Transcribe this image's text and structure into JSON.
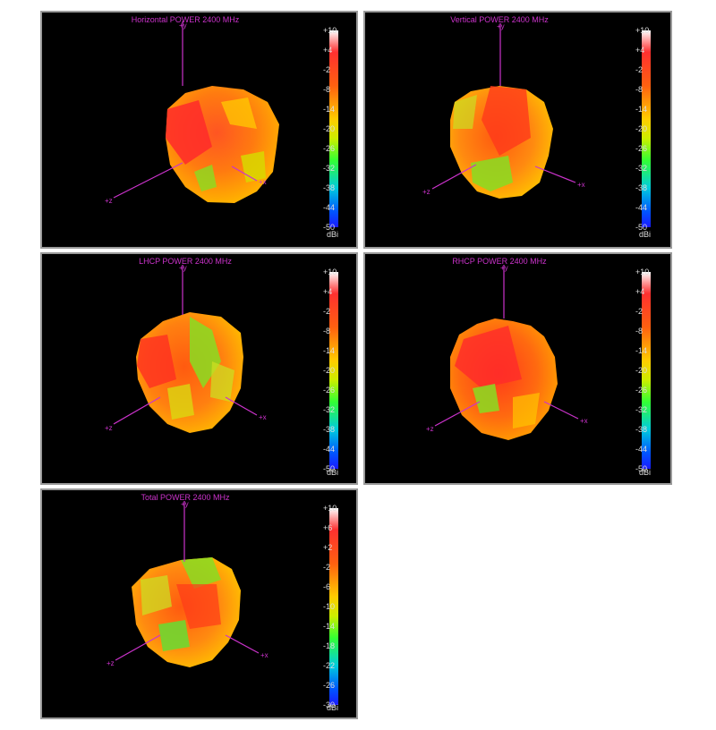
{
  "chart_data": [
    {
      "type": "other",
      "title": "Horizontal POWER 2400  MHz",
      "axes": [
        "+y",
        "+z",
        "+x"
      ],
      "colorbar": {
        "unit": "dBi",
        "ticks": [
          "+10",
          "+4",
          "-2",
          "-8",
          "-14",
          "-20",
          "-26",
          "-32",
          "-38",
          "-44",
          "-50"
        ],
        "range": [
          -50,
          10
        ]
      }
    },
    {
      "type": "other",
      "title": "Vertical POWER 2400  MHz",
      "axes": [
        "+y",
        "+z",
        "+x"
      ],
      "colorbar": {
        "unit": "dBi",
        "ticks": [
          "+10",
          "+4",
          "-2",
          "-8",
          "-14",
          "-20",
          "-26",
          "-32",
          "-38",
          "-44",
          "-50"
        ],
        "range": [
          -50,
          10
        ]
      }
    },
    {
      "type": "other",
      "title": "LHCP POWER 2400  MHz",
      "axes": [
        "+y",
        "+z",
        "+x"
      ],
      "colorbar": {
        "unit": "dBi",
        "ticks": [
          "+10",
          "+4",
          "-2",
          "-8",
          "-14",
          "-20",
          "-26",
          "-32",
          "-38",
          "-44",
          "-50"
        ],
        "range": [
          -50,
          10
        ]
      }
    },
    {
      "type": "other",
      "title": "RHCP POWER 2400  MHz",
      "axes": [
        "+y",
        "+z",
        "+x"
      ],
      "colorbar": {
        "unit": "dBi",
        "ticks": [
          "+10",
          "+4",
          "-2",
          "-8",
          "-14",
          "-20",
          "-26",
          "-32",
          "-38",
          "-44",
          "-50"
        ],
        "range": [
          -50,
          10
        ]
      }
    },
    {
      "type": "other",
      "title": "Total POWER 2400  MHz",
      "axes": [
        "+y",
        "+z",
        "+x"
      ],
      "colorbar": {
        "unit": "dBi",
        "ticks": [
          "+10",
          "+6",
          "+2",
          "-2",
          "-6",
          "-10",
          "-14",
          "-18",
          "-22",
          "-26",
          "-30"
        ],
        "range": [
          -30,
          10
        ]
      }
    }
  ],
  "colors": {
    "axis": "#cc33cc",
    "background": "#000000",
    "border": "#9a9a9a"
  }
}
